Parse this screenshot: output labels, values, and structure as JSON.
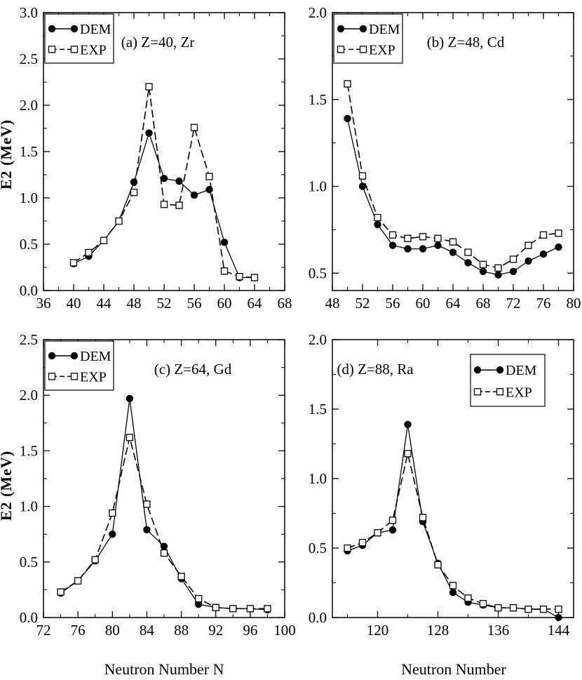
{
  "figure": {
    "ylabel_top": "E2 (MeV)",
    "ylabel_bottom": "E2 (MeV)",
    "xlabel_left": "Neutron Number N",
    "xlabel_right": "Neutron Number"
  },
  "legend_labels": [
    "DEM",
    "EXP"
  ],
  "chart_data": [
    {
      "type": "line",
      "title": "(a) Z=40, Zr",
      "xlim": [
        36,
        68
      ],
      "ylim": [
        0,
        3
      ],
      "xticks": [
        36,
        40,
        44,
        48,
        52,
        56,
        60,
        64,
        68
      ],
      "xtick_labels": [
        "36",
        "40",
        "44",
        "48",
        "52",
        "56",
        "60",
        "64",
        "68"
      ],
      "yticks": [
        0,
        0.5,
        1,
        1.5,
        2,
        2.5,
        3
      ],
      "ytick_labels": [
        "0.0",
        "0.5",
        "1.0",
        "1.5",
        "2.0",
        "2.5",
        "3.0"
      ],
      "xlabel": "",
      "ylabel": "E2 (MeV)",
      "legend_position": "top-left",
      "series": [
        {
          "name": "DEM",
          "style": "solid",
          "marker": "filled-circle",
          "x": [
            40,
            42,
            44,
            46,
            48,
            50,
            52,
            54,
            56,
            58,
            60,
            62,
            64
          ],
          "y": [
            0.29,
            0.37,
            0.54,
            0.75,
            1.17,
            1.7,
            1.21,
            1.18,
            1.03,
            1.09,
            0.52,
            0.14,
            0.14
          ]
        },
        {
          "name": "EXP",
          "style": "dashed",
          "marker": "open-square",
          "x": [
            40,
            42,
            44,
            46,
            48,
            50,
            52,
            54,
            56,
            58,
            60,
            62,
            64
          ],
          "y": [
            0.3,
            0.41,
            0.54,
            0.75,
            1.06,
            2.2,
            0.93,
            0.92,
            1.76,
            1.23,
            0.21,
            0.15,
            0.14
          ]
        }
      ]
    },
    {
      "type": "line",
      "title": "(b) Z=48, Cd",
      "xlim": [
        48,
        80
      ],
      "ylim": [
        0.4,
        2.0
      ],
      "xticks": [
        48,
        52,
        56,
        60,
        64,
        68,
        72,
        76,
        80
      ],
      "xtick_labels": [
        "48",
        "52",
        "56",
        "60",
        "64",
        "68",
        "72",
        "76",
        "80"
      ],
      "yticks": [
        0.5,
        1.0,
        1.5,
        2.0
      ],
      "ytick_labels": [
        "0.5",
        "1.0",
        "1.5",
        "2.0"
      ],
      "xlabel": "",
      "ylabel": "",
      "legend_position": "top-left",
      "series": [
        {
          "name": "DEM",
          "style": "solid",
          "marker": "filled-circle",
          "x": [
            50,
            52,
            54,
            56,
            58,
            60,
            62,
            64,
            66,
            68,
            70,
            72,
            74,
            76,
            78
          ],
          "y": [
            1.39,
            1.0,
            0.78,
            0.66,
            0.64,
            0.64,
            0.66,
            0.62,
            0.56,
            0.51,
            0.49,
            0.51,
            0.57,
            0.61,
            0.65
          ]
        },
        {
          "name": "EXP",
          "style": "dashed",
          "marker": "open-square",
          "x": [
            50,
            52,
            54,
            56,
            58,
            60,
            62,
            64,
            66,
            68,
            70,
            72,
            74,
            76,
            78
          ],
          "y": [
            1.59,
            1.06,
            0.82,
            0.72,
            0.7,
            0.71,
            0.7,
            0.68,
            0.62,
            0.55,
            0.53,
            0.58,
            0.66,
            0.72,
            0.73
          ]
        }
      ]
    },
    {
      "type": "line",
      "title": "(c) Z=64, Gd",
      "xlim": [
        72,
        100
      ],
      "ylim": [
        0,
        2.5
      ],
      "xticks": [
        72,
        76,
        80,
        84,
        88,
        92,
        96,
        100
      ],
      "xtick_labels": [
        "72",
        "76",
        "80",
        "84",
        "88",
        "92",
        "96",
        "100"
      ],
      "yticks": [
        0,
        0.5,
        1,
        1.5,
        2,
        2.5
      ],
      "ytick_labels": [
        "0.0",
        "0.5",
        "1.0",
        "1.5",
        "2.0",
        "2.5"
      ],
      "xlabel": "Neutron Number N",
      "ylabel": "E2 (MeV)",
      "legend_position": "top-left",
      "series": [
        {
          "name": "DEM",
          "style": "solid",
          "marker": "filled-circle",
          "x": [
            74,
            76,
            78,
            80,
            82,
            84,
            86,
            88,
            90,
            92,
            94,
            96,
            98
          ],
          "y": [
            0.22,
            0.33,
            0.51,
            0.75,
            1.97,
            0.79,
            0.64,
            0.35,
            0.12,
            0.09,
            0.08,
            0.08,
            0.07
          ]
        },
        {
          "name": "EXP",
          "style": "dashed",
          "marker": "open-square",
          "x": [
            74,
            76,
            78,
            80,
            82,
            84,
            86,
            88,
            90,
            92,
            94,
            96,
            98
          ],
          "y": [
            0.23,
            0.33,
            0.52,
            0.94,
            1.62,
            1.02,
            0.58,
            0.37,
            0.17,
            0.09,
            0.08,
            0.08,
            0.08
          ]
        }
      ]
    },
    {
      "type": "line",
      "title": "(d) Z=88, Ra",
      "xlim": [
        114,
        146
      ],
      "ylim": [
        0,
        2.0
      ],
      "xticks": [
        120,
        128,
        136,
        144
      ],
      "xtick_labels": [
        "120",
        "128",
        "136",
        "144"
      ],
      "yticks": [
        0,
        0.5,
        1.0,
        1.5,
        2.0
      ],
      "ytick_labels": [
        "0.0",
        "0.5",
        "1.0",
        "1.5",
        "2.0"
      ],
      "xlabel": "Neutron Number",
      "ylabel": "",
      "legend_position": "top-right",
      "series": [
        {
          "name": "DEM",
          "style": "solid",
          "marker": "filled-circle",
          "x": [
            116,
            118,
            120,
            122,
            124,
            126,
            128,
            130,
            132,
            134,
            136,
            138,
            140,
            142,
            144
          ],
          "y": [
            0.48,
            0.52,
            0.61,
            0.63,
            1.39,
            0.69,
            0.39,
            0.18,
            0.11,
            0.09,
            0.07,
            0.07,
            0.06,
            0.06,
            0.0
          ]
        },
        {
          "name": "EXP",
          "style": "dashed",
          "marker": "open-square",
          "x": [
            116,
            118,
            120,
            122,
            124,
            126,
            128,
            130,
            132,
            134,
            136,
            138,
            140,
            142,
            144
          ],
          "y": [
            0.5,
            0.54,
            0.61,
            0.7,
            1.18,
            0.72,
            0.38,
            0.23,
            0.14,
            0.1,
            0.07,
            0.07,
            0.06,
            0.06,
            0.06
          ]
        }
      ]
    }
  ]
}
